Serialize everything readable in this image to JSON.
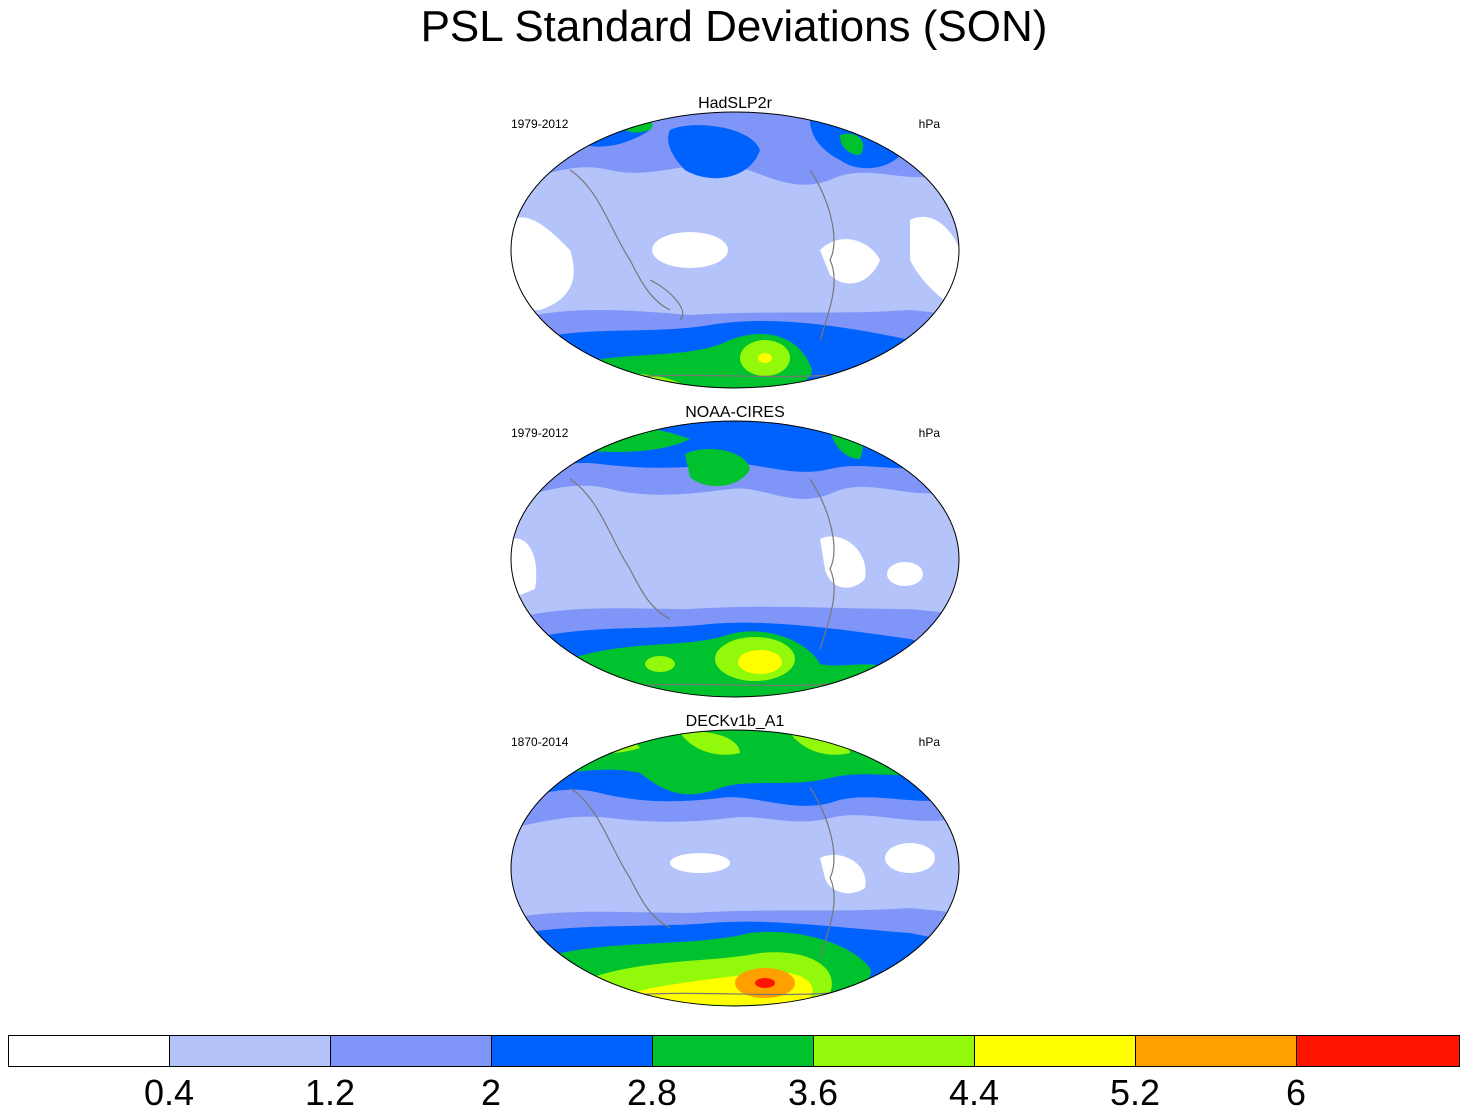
{
  "title": "PSL Standard Deviations (SON)",
  "panels": [
    {
      "name": "HadSLP2r",
      "period": "1979-2012",
      "units": "hPa"
    },
    {
      "name": "NOAA-CIRES",
      "period": "1979-2012",
      "units": "hPa"
    },
    {
      "name": "DECKv1b_A1",
      "period": "1870-2014",
      "units": "hPa"
    }
  ],
  "colorbar": {
    "colors": [
      "#ffffff",
      "#b4c3fa",
      "#7f96f8",
      "#0062fc",
      "#00c12e",
      "#93f90a",
      "#ffff00",
      "#ff9f00",
      "#ff1400"
    ],
    "labels": [
      "0.4",
      "1.2",
      "2",
      "2.8",
      "3.6",
      "4.4",
      "5.2",
      "6"
    ]
  }
}
